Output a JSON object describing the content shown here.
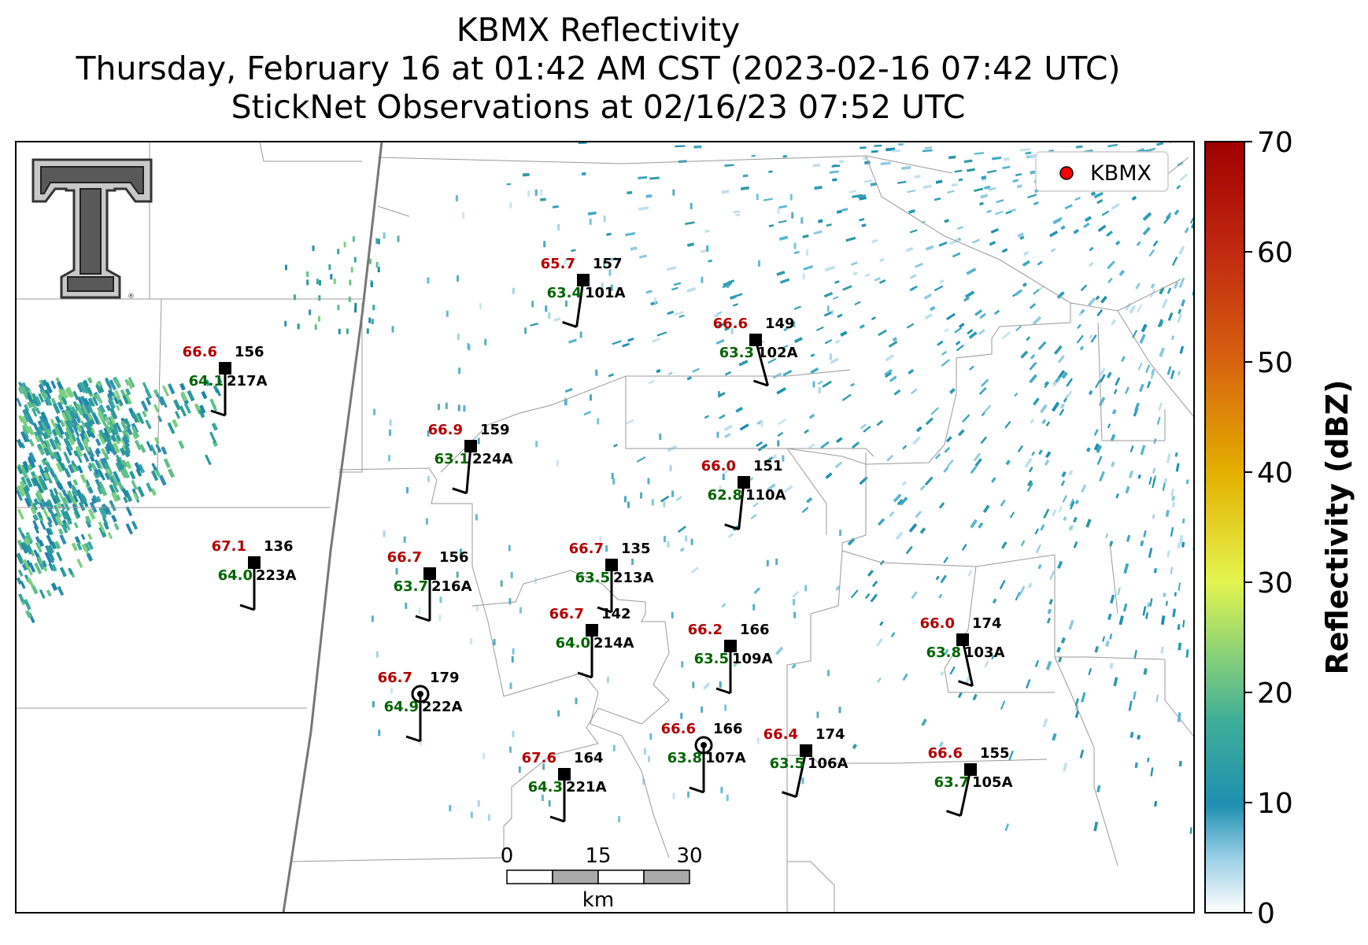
{
  "title": {
    "line1": "KBMX Reflectivity",
    "line2": "Thursday, February 16 at 01:42 AM CST (2023-02-16 07:42 UTC)",
    "line3": "StickNet Observations at 02/16/23 07:52 UTC"
  },
  "legend": {
    "label": "KBMX",
    "marker_color": "#ff0000"
  },
  "logo": {
    "name": "texas-tech-double-t-logo",
    "text": "TT"
  },
  "colorbar": {
    "label": "Reflectivity (dBZ)",
    "ticks": [
      "0",
      "10",
      "20",
      "30",
      "40",
      "50",
      "60",
      "70"
    ],
    "range": [
      0,
      70
    ],
    "colors": [
      "#ffffff",
      "#1e90b0",
      "#7ac97a",
      "#e8f54a",
      "#e0b000",
      "#d04000",
      "#a00000"
    ]
  },
  "scalebar": {
    "ticks": [
      "0",
      "15",
      "30"
    ],
    "unit": "km"
  },
  "stations": [
    {
      "id": "157",
      "label": "101A",
      "temp": "65.7",
      "dew": "63.4"
    },
    {
      "id": "149",
      "label": "102A",
      "temp": "66.6",
      "dew": "63.3"
    },
    {
      "id": "156",
      "label": "217A",
      "temp": "66.6",
      "dew": "64.1"
    },
    {
      "id": "159",
      "label": "224A",
      "temp": "66.9",
      "dew": "63.1"
    },
    {
      "id": "151",
      "label": "110A",
      "temp": "66.0",
      "dew": "62.8"
    },
    {
      "id": "136",
      "label": "223A",
      "temp": "67.1",
      "dew": "64.0"
    },
    {
      "id": "156",
      "label": "216A",
      "temp": "66.7",
      "dew": "63.7"
    },
    {
      "id": "135",
      "label": "213A",
      "temp": "66.7",
      "dew": "63.5"
    },
    {
      "id": "142",
      "label": "214A",
      "temp": "66.7",
      "dew": "64.0"
    },
    {
      "id": "166",
      "label": "109A",
      "temp": "66.2",
      "dew": "63.5"
    },
    {
      "id": "174",
      "label": "103A",
      "temp": "66.0",
      "dew": "63.8"
    },
    {
      "id": "179",
      "label": "222A",
      "temp": "66.7",
      "dew": "64.9"
    },
    {
      "id": "166",
      "label": "107A",
      "temp": "66.6",
      "dew": "63.8"
    },
    {
      "id": "174",
      "label": "106A",
      "temp": "66.4",
      "dew": "63.5"
    },
    {
      "id": "164",
      "label": "221A",
      "temp": "67.6",
      "dew": "64.3"
    },
    {
      "id": "155",
      "label": "105A",
      "temp": "66.6",
      "dew": "63.7"
    }
  ]
}
